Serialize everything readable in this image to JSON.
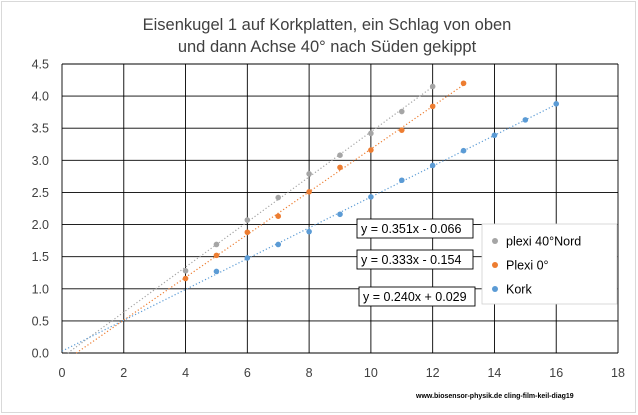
{
  "chart_data": {
    "type": "scatter",
    "title": [
      "Eisenkugel 1 auf Korkplatten, ein Schlag von oben",
      "und dann Achse 40° nach Süden gekippt"
    ],
    "xlim": [
      0,
      18
    ],
    "ylim": [
      0,
      4.5
    ],
    "x_ticks": [
      "0",
      "2",
      "4",
      "6",
      "8",
      "10",
      "12",
      "14",
      "16",
      "18"
    ],
    "y_ticks": [
      "0.0",
      "0.5",
      "1.0",
      "1.5",
      "2.0",
      "2.5",
      "3.0",
      "3.5",
      "4.0",
      "4.5"
    ],
    "grid": true,
    "legend_position": "right",
    "series": [
      {
        "name": "plexi 40°Nord",
        "color": "#a5a5a5",
        "x": [
          4,
          5,
          6,
          7,
          8,
          9,
          10,
          11,
          12
        ],
        "y": [
          1.28,
          1.69,
          2.07,
          2.42,
          2.79,
          3.08,
          3.42,
          3.76,
          4.15
        ],
        "trendline": {
          "slope": 0.351,
          "intercept": -0.066,
          "x_range": [
            0,
            12
          ],
          "equation": "y = 0.351x - 0.066"
        }
      },
      {
        "name": "Plexi 0°",
        "color": "#ed7d31",
        "x": [
          4,
          5,
          6,
          7,
          8,
          9,
          10,
          11,
          12,
          13
        ],
        "y": [
          1.16,
          1.52,
          1.88,
          2.13,
          2.51,
          2.89,
          3.16,
          3.47,
          3.84,
          4.2
        ],
        "trendline": {
          "slope": 0.333,
          "intercept": -0.154,
          "x_range": [
            0,
            13
          ],
          "equation": "y = 0.333x - 0.154"
        }
      },
      {
        "name": "Kork",
        "color": "#5b9bd5",
        "x": [
          5,
          6,
          7,
          8,
          9,
          10,
          11,
          12,
          13,
          14,
          15,
          16
        ],
        "y": [
          1.27,
          1.48,
          1.69,
          1.89,
          2.16,
          2.43,
          2.69,
          2.92,
          3.15,
          3.39,
          3.63,
          3.88
        ],
        "trendline": {
          "slope": 0.24,
          "intercept": 0.029,
          "x_range": [
            0,
            16
          ],
          "equation": "y = 0.240x + 0.029"
        }
      }
    ],
    "credit": "www.biosensor-physik.de  cling-film-keil-diag19"
  }
}
